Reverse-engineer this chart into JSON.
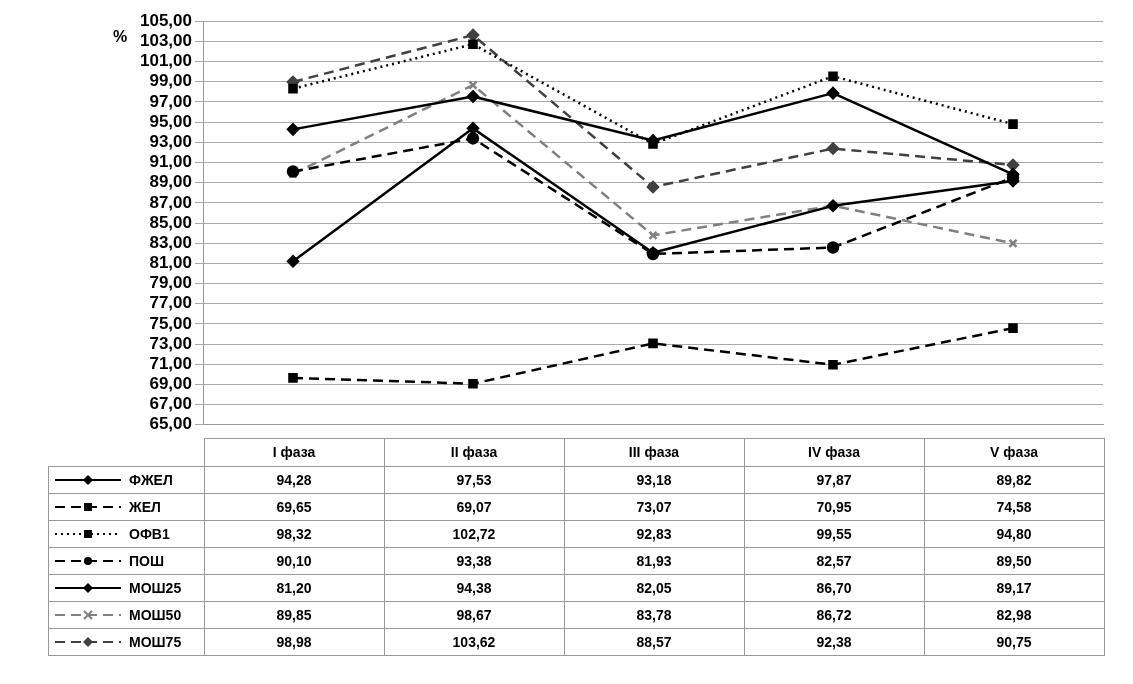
{
  "chart_data": {
    "type": "line",
    "ylabel": "%",
    "categories": [
      "I фаза",
      "II фаза",
      "III фаза",
      "IV фаза",
      "V фаза"
    ],
    "series": [
      {
        "name": "ФЖЕЛ",
        "color": "#000000",
        "marker": "diamond",
        "line_style": "solid",
        "values": [
          94.28,
          97.53,
          93.18,
          97.87,
          89.82
        ],
        "value_labels": [
          "94,28",
          "97,53",
          "93,18",
          "97,87",
          "89,82"
        ]
      },
      {
        "name": "ЖЕЛ",
        "color": "#000000",
        "marker": "square",
        "line_style": "dashed",
        "values": [
          69.65,
          69.07,
          73.07,
          70.95,
          74.58
        ],
        "value_labels": [
          "69,65",
          "69,07",
          "73,07",
          "70,95",
          "74,58"
        ]
      },
      {
        "name": "ОФВ1",
        "color": "#000000",
        "marker": "square",
        "line_style": "dotted",
        "values": [
          98.32,
          102.72,
          92.83,
          99.55,
          94.8
        ],
        "value_labels": [
          "98,32",
          "102,72",
          "92,83",
          "99,55",
          "94,80"
        ]
      },
      {
        "name": "ПОШ",
        "color": "#000000",
        "marker": "circle",
        "line_style": "dashed",
        "values": [
          90.1,
          93.38,
          81.93,
          82.57,
          89.5
        ],
        "value_labels": [
          "90,10",
          "93,38",
          "81,93",
          "82,57",
          "89,50"
        ]
      },
      {
        "name": "МОШ25",
        "color": "#000000",
        "marker": "diamond",
        "line_style": "solid",
        "values": [
          81.2,
          94.38,
          82.05,
          86.7,
          89.17
        ],
        "value_labels": [
          "81,20",
          "94,38",
          "82,05",
          "86,70",
          "89,17"
        ]
      },
      {
        "name": "МОШ50",
        "color": "#808080",
        "marker": "cross",
        "line_style": "dashed",
        "values": [
          89.85,
          98.67,
          83.78,
          86.72,
          82.98
        ],
        "value_labels": [
          "89,85",
          "98,67",
          "83,78",
          "86,72",
          "82,98"
        ]
      },
      {
        "name": "МОШ75",
        "color": "#404040",
        "marker": "diamond",
        "line_style": "dashed",
        "values": [
          98.98,
          103.62,
          88.57,
          92.38,
          90.75
        ],
        "value_labels": [
          "98,98",
          "103,62",
          "88,57",
          "92,38",
          "90,75"
        ]
      }
    ],
    "ylim": [
      65,
      105
    ],
    "yticks": [
      {
        "value": 65,
        "label": "65,00"
      },
      {
        "value": 67,
        "label": "67,00"
      },
      {
        "value": 69,
        "label": "69,00"
      },
      {
        "value": 71,
        "label": "71,00"
      },
      {
        "value": 73,
        "label": "73,00"
      },
      {
        "value": 75,
        "label": "75,00"
      },
      {
        "value": 77,
        "label": "77,00"
      },
      {
        "value": 79,
        "label": "79,00"
      },
      {
        "value": 81,
        "label": "81,00"
      },
      {
        "value": 83,
        "label": "83,00"
      },
      {
        "value": 85,
        "label": "85,00"
      },
      {
        "value": 87,
        "label": "87,00"
      },
      {
        "value": 89,
        "label": "89,00"
      },
      {
        "value": 91,
        "label": "91,00"
      },
      {
        "value": 93,
        "label": "93,00"
      },
      {
        "value": 95,
        "label": "95,00"
      },
      {
        "value": 97,
        "label": "97,00"
      },
      {
        "value": 99,
        "label": "99,00"
      },
      {
        "value": 101,
        "label": "101,00"
      },
      {
        "value": 103,
        "label": "103,00"
      },
      {
        "value": 105,
        "label": "105,00"
      }
    ],
    "grid": "y",
    "legend": "bottom"
  }
}
